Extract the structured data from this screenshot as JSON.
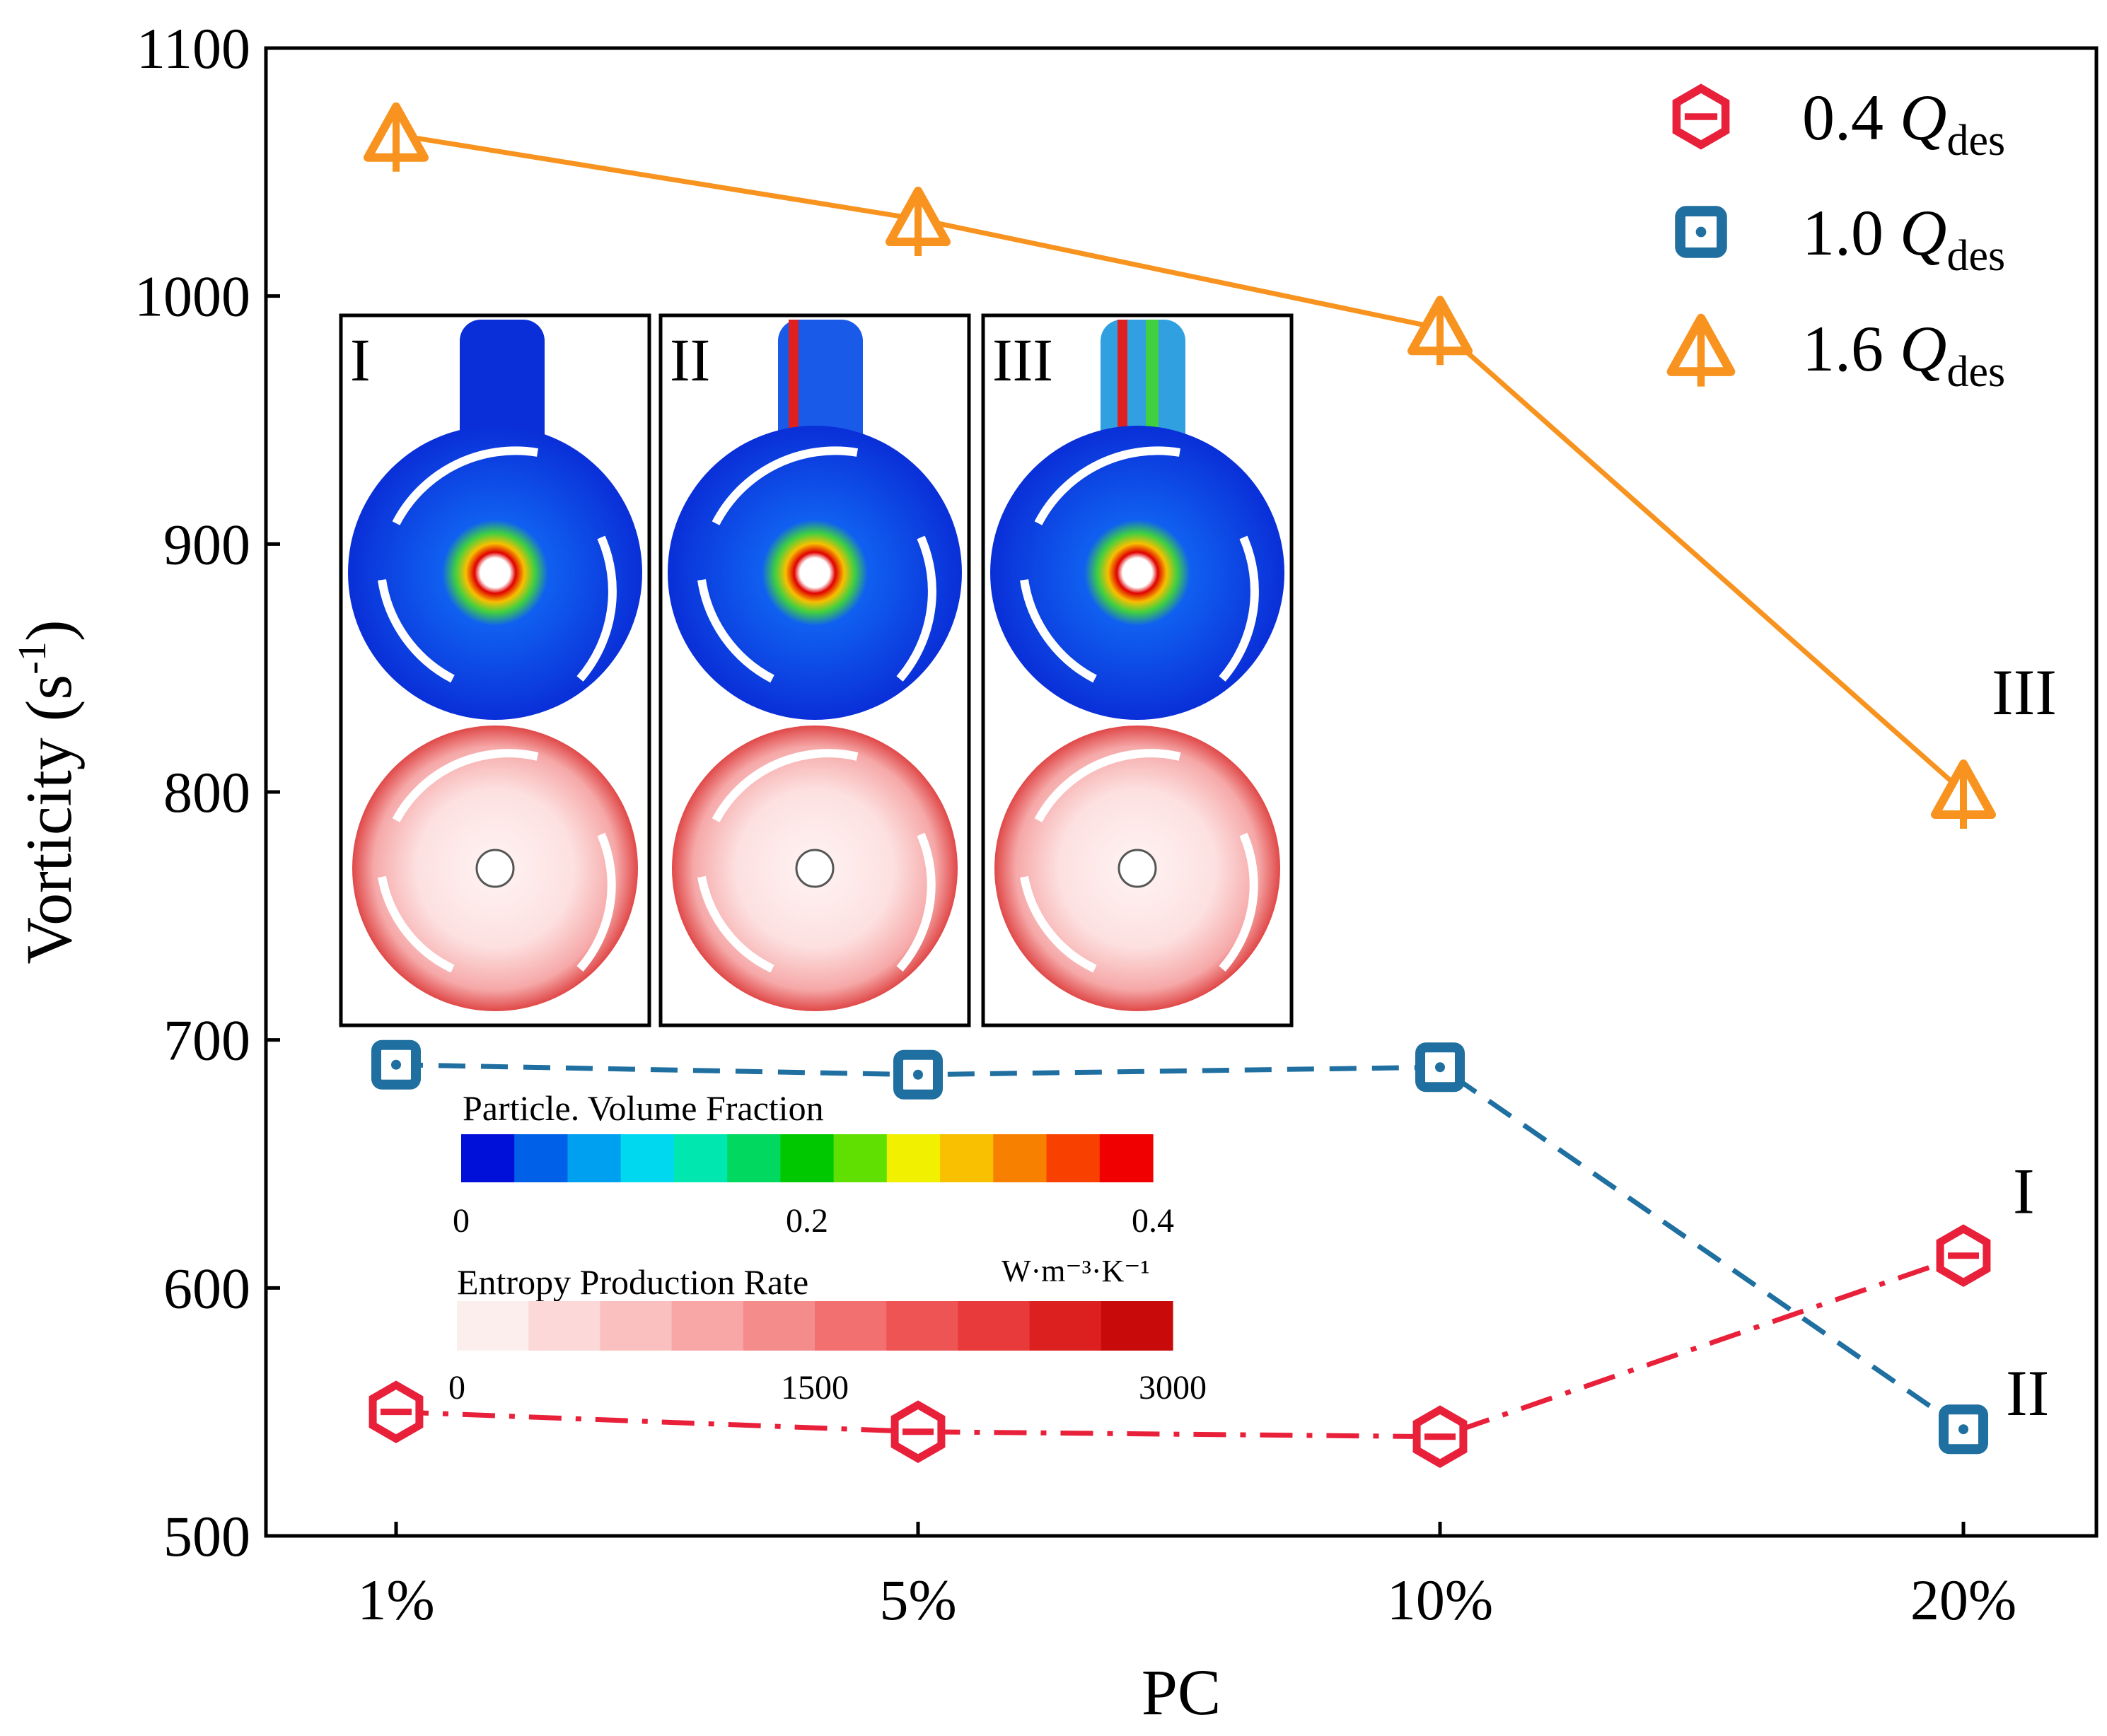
{
  "chart_data": {
    "type": "line",
    "xlabel": "PC",
    "ylabel": "Vorticity (s",
    "ylabel_sup": "-1",
    "ylabel_close": ")",
    "categories": [
      "1%",
      "5%",
      "10%",
      "20%"
    ],
    "ylim": [
      500,
      1100
    ],
    "yticks": [
      500,
      600,
      700,
      800,
      900,
      1000,
      1100
    ],
    "series": [
      {
        "name": "0.4 Q_des",
        "coef": "0.4",
        "q": "Q",
        "sub": "des",
        "color": "#e8203a",
        "marker": "hexagon",
        "dash": "dashdot",
        "values": [
          550,
          542,
          540,
          613
        ]
      },
      {
        "name": "1.0 Q_des",
        "coef": "1.0",
        "q": "Q",
        "sub": "des",
        "color": "#1f6fa0",
        "marker": "square",
        "dash": "dashed",
        "values": [
          690,
          686,
          689,
          543
        ]
      },
      {
        "name": "1.6 Q_des",
        "coef": "1.6",
        "q": "Q",
        "sub": "des",
        "color": "#f7931e",
        "marker": "triangle",
        "dash": "solid",
        "values": [
          1065,
          1031,
          987,
          800
        ]
      }
    ],
    "annotations": [
      {
        "text": "III",
        "near_series": "1.6 Q_des",
        "at": "20%"
      },
      {
        "text": "I",
        "near_series": "0.4 Q_des",
        "at": "20%"
      },
      {
        "text": "II",
        "near_series": "1.0 Q_des",
        "at": "20%"
      }
    ],
    "legend": "top-right",
    "insets": {
      "panels": [
        "I",
        "II",
        "III"
      ],
      "colorbar_volume_fraction": {
        "title": "Particle. Volume Fraction",
        "ticks": [
          "0",
          "0.2",
          "0.4"
        ],
        "colors": [
          "#0010d8",
          "#0060e8",
          "#00a0f0",
          "#00d8f0",
          "#00e8b0",
          "#00d860",
          "#00c800",
          "#60e000",
          "#f0f000",
          "#f8c000",
          "#f88000",
          "#f84000",
          "#f00000"
        ]
      },
      "colorbar_entropy": {
        "title": "Entropy Production Rate",
        "unit": "W·m⁻³·K⁻¹",
        "ticks": [
          "0",
          "1500",
          "3000"
        ],
        "colors": [
          "#fdeeee",
          "#fcd8d8",
          "#fac0c0",
          "#f8a6a6",
          "#f58c8c",
          "#f27070",
          "#ee5454",
          "#e83a3a",
          "#dc2020",
          "#c80a0a"
        ]
      }
    }
  }
}
